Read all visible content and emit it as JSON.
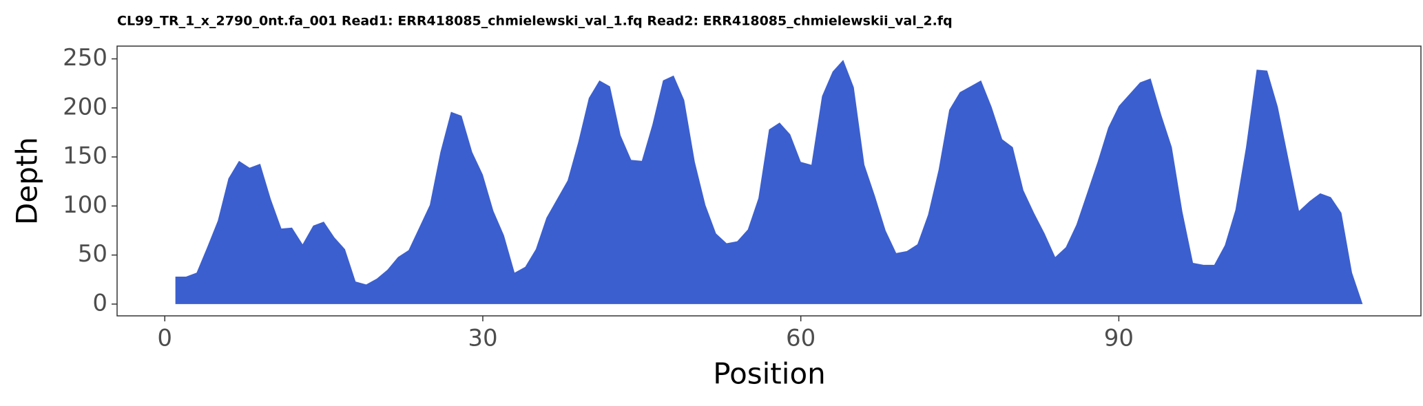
{
  "chart_data": {
    "type": "area",
    "title": "CL99_TR_1_x_2790_0nt.fa_001 Read1: ERR418085_chmielewski_val_1.fq Read2: ERR418085_chmielewskii_val_2.fq",
    "x_label": "Position",
    "y_label": "Depth",
    "color": "#3b5fcf",
    "grid": false,
    "x": [
      1,
      2,
      3,
      4,
      5,
      6,
      7,
      8,
      9,
      10,
      11,
      12,
      13,
      14,
      15,
      16,
      17,
      18,
      19,
      20,
      21,
      22,
      23,
      24,
      25,
      26,
      27,
      28,
      29,
      30,
      31,
      32,
      33,
      34,
      35,
      36,
      37,
      38,
      39,
      40,
      41,
      42,
      43,
      44,
      45,
      46,
      47,
      48,
      49,
      50,
      51,
      52,
      53,
      54,
      55,
      56,
      57,
      58,
      59,
      60,
      61,
      62,
      63,
      64,
      65,
      66,
      67,
      68,
      69,
      70,
      71,
      72,
      73,
      74,
      75,
      76,
      77,
      78,
      79,
      80,
      81,
      82,
      83,
      84,
      85,
      86,
      87,
      88,
      89,
      90,
      91,
      92,
      93,
      94,
      95,
      96,
      97,
      98,
      99,
      100,
      101,
      102,
      103,
      104,
      105,
      106,
      107,
      108,
      109,
      110,
      111,
      112,
      113
    ],
    "values": [
      28,
      28,
      32,
      58,
      85,
      128,
      146,
      139,
      143,
      107,
      77,
      78,
      61,
      80,
      84,
      68,
      56,
      23,
      20,
      26,
      35,
      48,
      55,
      78,
      101,
      155,
      196,
      192,
      155,
      132,
      95,
      70,
      32,
      38,
      56,
      88,
      107,
      126,
      165,
      210,
      228,
      222,
      172,
      147,
      146,
      183,
      228,
      233,
      208,
      145,
      101,
      72,
      62,
      64,
      76,
      108,
      178,
      185,
      173,
      145,
      142,
      212,
      237,
      249,
      221,
      142,
      110,
      75,
      52,
      54,
      61,
      91,
      137,
      198,
      216,
      222,
      228,
      201,
      168,
      160,
      116,
      93,
      72,
      48,
      58,
      81,
      113,
      145,
      180,
      202,
      214,
      226,
      230,
      193,
      160,
      94,
      42,
      40,
      40,
      60,
      96,
      160,
      239,
      238,
      201,
      148,
      95,
      105,
      113,
      109,
      93,
      32,
      0
    ],
    "xlim": [
      -4.5,
      118.5
    ],
    "xticks": [
      0,
      30,
      60,
      90
    ],
    "ylim": [
      -12,
      263
    ],
    "yticks": [
      0,
      50,
      100,
      150,
      200,
      250
    ]
  }
}
